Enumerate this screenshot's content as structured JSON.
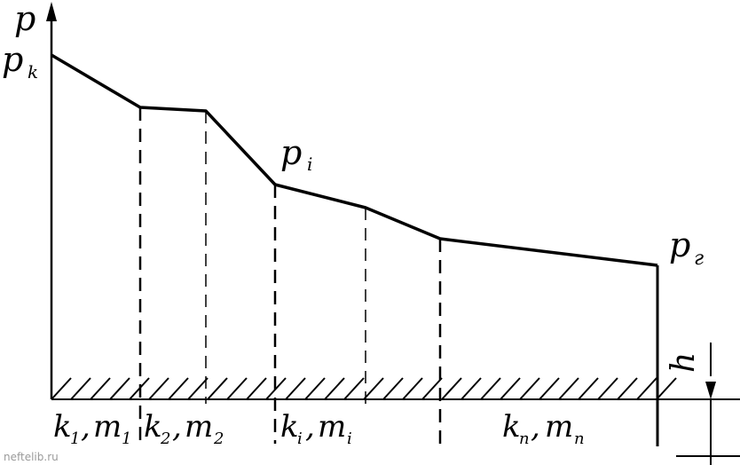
{
  "axis": {
    "y_label": "p"
  },
  "pressure_labels": {
    "start": {
      "main": "p",
      "sub": "k"
    },
    "middle": {
      "main": "p",
      "sub": "i"
    },
    "end": {
      "main": "p",
      "sub": "г"
    }
  },
  "depth_label": "h",
  "layers": [
    {
      "k": "k",
      "k_sub": "1",
      "m": "m",
      "m_sub": "1"
    },
    {
      "k": "k",
      "k_sub": "2",
      "m": "m",
      "m_sub": "2"
    },
    {
      "k": "k",
      "k_sub": "i",
      "m": "m",
      "m_sub": "i"
    },
    {
      "k": "k",
      "k_sub": "n",
      "m": "m",
      "m_sub": "n"
    }
  ],
  "watermark": "neftelib.ru"
}
